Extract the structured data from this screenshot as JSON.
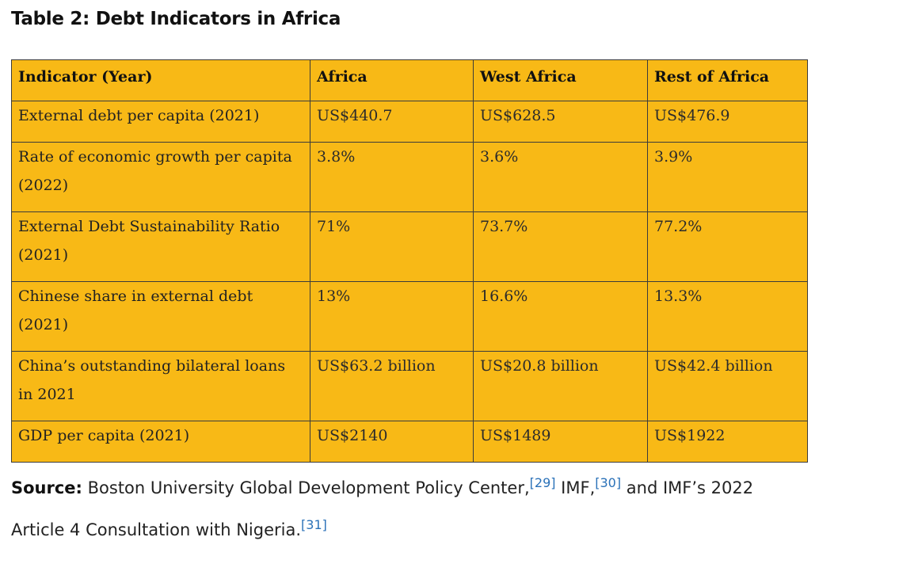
{
  "title": "Table 2: Debt Indicators in Africa",
  "table": {
    "headers": [
      "Indicator (Year)",
      "Africa",
      "West Africa",
      "Rest of Africa"
    ],
    "rows": [
      {
        "indicator": "External debt per capita (2021)",
        "africa": "US$440.7",
        "west_africa": "US$628.5",
        "rest_of_africa": "US$476.9"
      },
      {
        "indicator": "Rate of economic growth per capita (2022)",
        "africa": "3.8%",
        "west_africa": "3.6%",
        "rest_of_africa": "3.9%"
      },
      {
        "indicator": "External Debt Sustainability Ratio (2021)",
        "africa": "71%",
        "west_africa": "73.7%",
        "rest_of_africa": "77.2%"
      },
      {
        "indicator": "Chinese share in external debt (2021)",
        "africa": "13%",
        "west_africa": "16.6%",
        "rest_of_africa": "13.3%"
      },
      {
        "indicator": "China’s outstanding bilateral loans in 2021",
        "africa": "US$63.2 billion",
        "west_africa": "US$20.8 billion",
        "rest_of_africa": "US$42.4 billion"
      },
      {
        "indicator": "GDP per capita (2021)",
        "africa": "US$2140",
        "west_africa": "US$1489",
        "rest_of_africa": "US$1922"
      }
    ]
  },
  "source": {
    "label": "Source:",
    "text1": " Boston University Global Development Policy Center,",
    "ref1": "[29]",
    "text2": "  IMF,",
    "ref2": "[30]",
    "text3": " and IMF’s 2022 Article 4 Consultation with Nigeria.",
    "ref3": "[31]"
  },
  "colors": {
    "table_background": "#f8b916",
    "border": "#3b3b3b",
    "link": "#2a71b8"
  }
}
